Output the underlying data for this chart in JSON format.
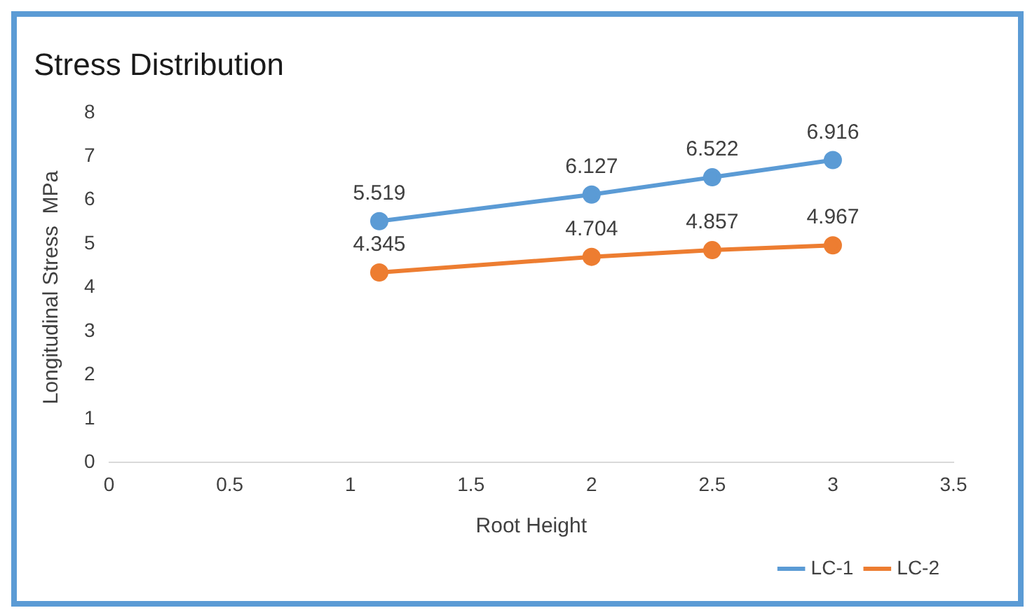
{
  "chart_data": {
    "type": "line",
    "title": "Stress Distribution",
    "xlabel": "Root Height",
    "ylabel": "Longitudinal Stress  MPa",
    "x": [
      1.12,
      2,
      2.5,
      3
    ],
    "series": [
      {
        "name": "LC-1",
        "color": "#5b9bd5",
        "values": [
          5.519,
          6.127,
          6.522,
          6.916
        ]
      },
      {
        "name": "LC-2",
        "color": "#ed7d31",
        "values": [
          4.345,
          4.704,
          4.857,
          4.967
        ]
      }
    ],
    "xlim": [
      0,
      3.5
    ],
    "xticks": [
      0,
      0.5,
      1,
      1.5,
      2,
      2.5,
      3,
      3.5
    ],
    "ylim": [
      0,
      8
    ],
    "yticks": [
      0,
      1,
      2,
      3,
      4,
      5,
      6,
      7,
      8
    ],
    "grid": false,
    "legend": "bottom right",
    "marker": "circle",
    "line_style": "solid",
    "data_labels": true
  }
}
